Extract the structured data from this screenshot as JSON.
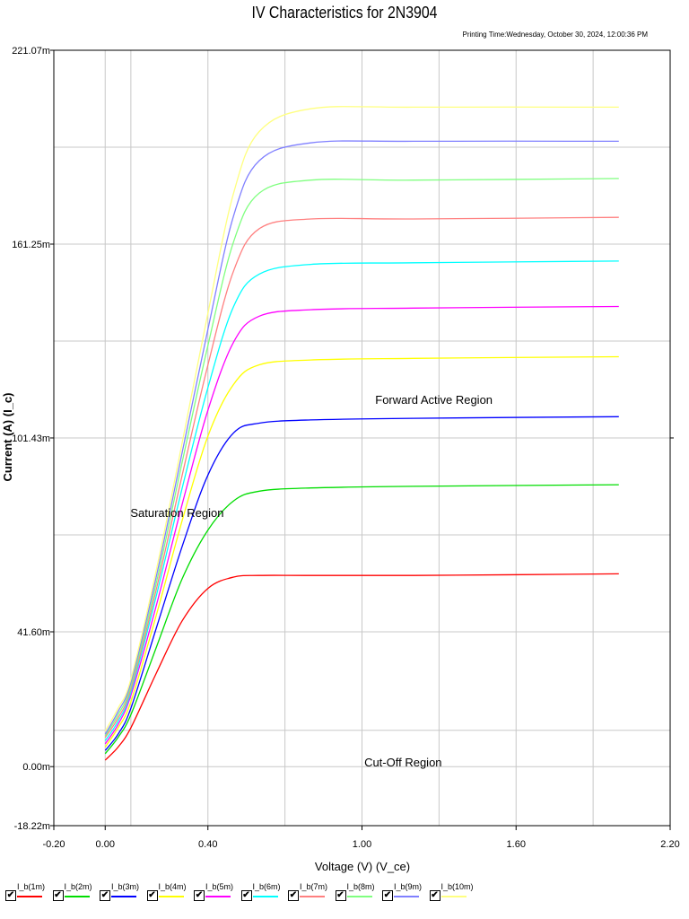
{
  "header": {
    "title": "IV Characteristics for 2N3904",
    "printing_time": "Printing Time:Wednesday, October 30, 2024, 12:00:36 PM"
  },
  "chart_data": {
    "type": "line",
    "title": "IV Characteristics for 2N3904",
    "xlabel": "Voltage (V) (V_ce)",
    "ylabel": "Current (A) (I_c)",
    "xlim": [
      -0.2,
      2.2
    ],
    "ylim": [
      -18.22,
      221.07
    ],
    "x_ticks": [
      "-0.20",
      "0.00",
      "0.40",
      "1.00",
      "1.60",
      "2.20"
    ],
    "x_tick_values": [
      -0.2,
      0.0,
      0.4,
      1.0,
      1.6,
      2.2
    ],
    "y_ticks": [
      "221.07m",
      "161.25m",
      "101.43m",
      "41.60m",
      "0.00m",
      "-18.22m"
    ],
    "y_tick_values": [
      221.07,
      161.25,
      101.43,
      41.6,
      0.0,
      -18.22
    ],
    "grid": true,
    "legend_position": "bottom",
    "annotations": [
      {
        "text": "Forward Active Region",
        "x": 1.28,
        "y": 112
      },
      {
        "text": "Saturation Region",
        "x": 0.28,
        "y": 77
      },
      {
        "text": "Cut-Off Region",
        "x": 1.16,
        "y": 0
      }
    ],
    "series": [
      {
        "name": "I_b(1m)",
        "color": "#ff0000",
        "x": [
          0.0,
          0.05,
          0.1,
          0.2,
          0.3,
          0.4,
          0.5,
          0.6,
          0.8,
          1.2,
          2.0
        ],
        "values": [
          2,
          6,
          12,
          29,
          45,
          55,
          58.5,
          59,
          59,
          59,
          59.5
        ]
      },
      {
        "name": "I_b(2m)",
        "color": "#00dd00",
        "x": [
          0.0,
          0.05,
          0.1,
          0.2,
          0.3,
          0.4,
          0.5,
          0.6,
          0.8,
          1.2,
          2.0
        ],
        "values": [
          4,
          9,
          16,
          37,
          58,
          73,
          82,
          85,
          86,
          86.5,
          87
        ]
      },
      {
        "name": "I_b(3m)",
        "color": "#0000ff",
        "x": [
          0.0,
          0.05,
          0.1,
          0.2,
          0.3,
          0.4,
          0.5,
          0.6,
          0.8,
          1.2,
          2.0
        ],
        "values": [
          5,
          10,
          18,
          43,
          68,
          90,
          103,
          106,
          107,
          107.5,
          108
        ]
      },
      {
        "name": "I_b(4m)",
        "color": "#ffff00",
        "x": [
          0.0,
          0.05,
          0.1,
          0.2,
          0.3,
          0.4,
          0.5,
          0.6,
          0.8,
          1.2,
          2.0
        ],
        "values": [
          6,
          12,
          20,
          47,
          76,
          102,
          118,
          124,
          125.5,
          126,
          126.5
        ]
      },
      {
        "name": "I_b(5m)",
        "color": "#ff00ff",
        "x": [
          0.0,
          0.05,
          0.1,
          0.2,
          0.3,
          0.4,
          0.5,
          0.6,
          0.8,
          1.2,
          2.0
        ],
        "values": [
          7,
          13,
          22,
          50,
          81,
          110,
          131,
          139,
          141,
          141.5,
          142
        ]
      },
      {
        "name": "I_b(6m)",
        "color": "#00ffff",
        "x": [
          0.0,
          0.05,
          0.1,
          0.2,
          0.3,
          0.4,
          0.5,
          0.6,
          0.8,
          1.2,
          2.0
        ],
        "values": [
          8,
          14,
          23,
          53,
          86,
          117,
          142,
          152,
          155,
          155.5,
          156
        ]
      },
      {
        "name": "I_b(7m)",
        "color": "#ff8080",
        "x": [
          0.0,
          0.05,
          0.1,
          0.2,
          0.3,
          0.4,
          0.5,
          0.6,
          0.8,
          1.2,
          2.0
        ],
        "values": [
          9,
          15,
          24,
          55,
          90,
          124,
          153,
          166,
          169,
          169,
          169.5
        ]
      },
      {
        "name": "I_b(8m)",
        "color": "#80ff80",
        "x": [
          0.0,
          0.05,
          0.1,
          0.2,
          0.3,
          0.4,
          0.5,
          0.6,
          0.8,
          1.2,
          2.0
        ],
        "values": [
          9.5,
          16,
          25,
          57,
          94,
          130,
          162,
          177,
          181,
          181,
          181.5
        ]
      },
      {
        "name": "I_b(9m)",
        "color": "#8080ff",
        "x": [
          0.0,
          0.05,
          0.1,
          0.2,
          0.3,
          0.4,
          0.5,
          0.6,
          0.8,
          1.2,
          2.0
        ],
        "values": [
          10,
          17,
          26,
          59,
          97,
          135,
          170,
          187,
          192.5,
          193,
          193
        ]
      },
      {
        "name": "I_b(10m)",
        "color": "#ffff80",
        "x": [
          0.0,
          0.05,
          0.1,
          0.2,
          0.3,
          0.4,
          0.5,
          0.6,
          0.8,
          1.2,
          2.0
        ],
        "values": [
          11,
          18,
          27,
          61,
          100,
          140,
          177,
          196,
          203,
          203.5,
          203.5
        ]
      }
    ]
  },
  "legend": {
    "items": [
      {
        "label": "I_b(1m)",
        "color": "#ff0000",
        "checked": "✔"
      },
      {
        "label": "I_b(2m)",
        "color": "#00dd00",
        "checked": "✔"
      },
      {
        "label": "I_b(3m)",
        "color": "#0000ff",
        "checked": "✔"
      },
      {
        "label": "I_b(4m)",
        "color": "#ffff00",
        "checked": "✔"
      },
      {
        "label": "I_b(5m)",
        "color": "#ff00ff",
        "checked": "✔"
      },
      {
        "label": "I_b(6m)",
        "color": "#00ffff",
        "checked": "✔"
      },
      {
        "label": "I_b(7m)",
        "color": "#ff8080",
        "checked": "✔"
      },
      {
        "label": "I_b(8m)",
        "color": "#80ff80",
        "checked": "✔"
      },
      {
        "label": "I_b(9m)",
        "color": "#8080ff",
        "checked": "✔"
      },
      {
        "label": "I_b(10m)",
        "color": "#ffff80",
        "checked": "✔"
      }
    ]
  }
}
